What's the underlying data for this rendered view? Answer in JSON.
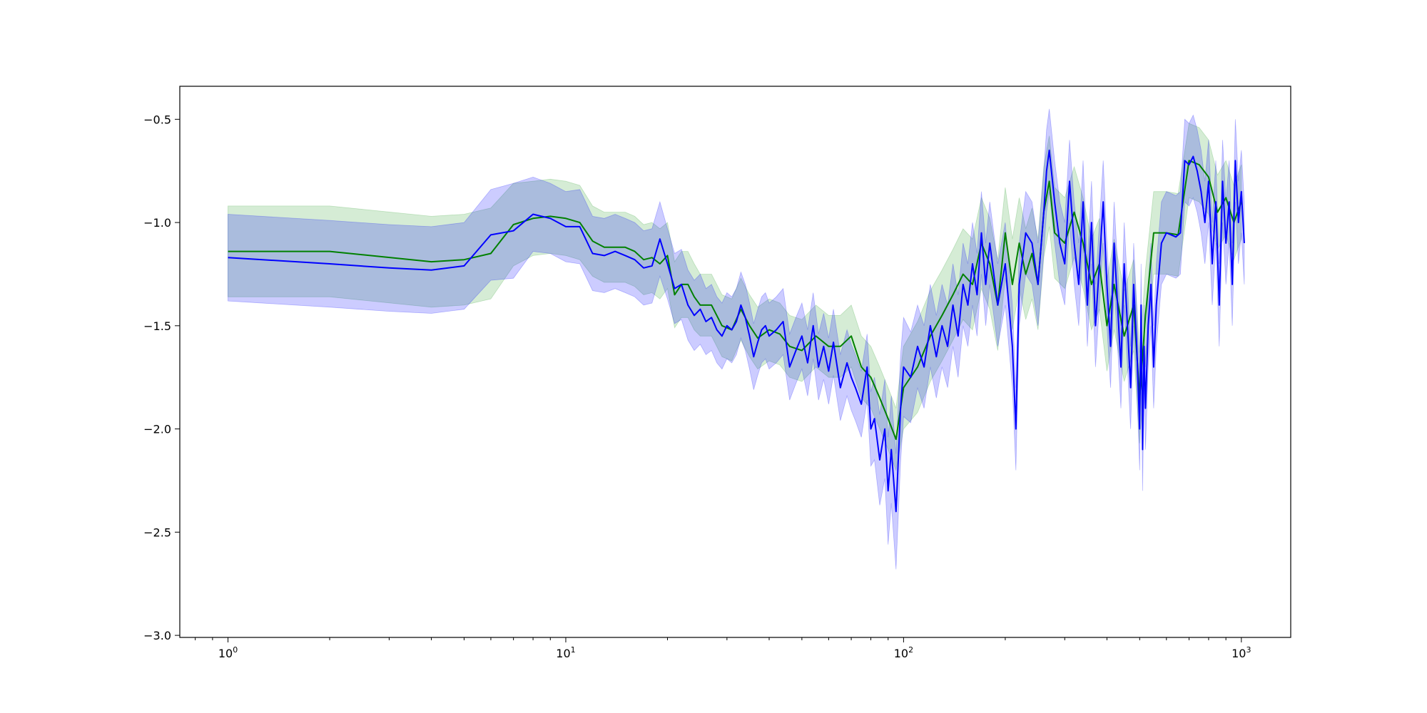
{
  "chart_data": {
    "type": "line",
    "title": "",
    "xlabel": "",
    "ylabel": "",
    "x_scale": "log",
    "xlim": [
      0.72,
      1400
    ],
    "ylim": [
      -3.01,
      -0.34
    ],
    "grid": false,
    "legend": "none",
    "x_ticks": [
      {
        "value": 1,
        "base": "10",
        "exp": "0"
      },
      {
        "value": 10,
        "base": "10",
        "exp": "1"
      },
      {
        "value": 100,
        "base": "10",
        "exp": "2"
      },
      {
        "value": 1000,
        "base": "10",
        "exp": "3"
      }
    ],
    "y_ticks": [
      {
        "value": -0.5,
        "label": "−0.5"
      },
      {
        "value": -1.0,
        "label": "−1.0"
      },
      {
        "value": -1.5,
        "label": "−1.5"
      },
      {
        "value": -2.0,
        "label": "−2.0"
      },
      {
        "value": -2.5,
        "label": "−2.5"
      },
      {
        "value": -3.0,
        "label": "−3.0"
      }
    ],
    "series": [
      {
        "color": "#008000",
        "band_color": "#2ca02c",
        "x": [
          1,
          2,
          4,
          5,
          6,
          7,
          8,
          9,
          10,
          11,
          12,
          13,
          15,
          16,
          17,
          18,
          19,
          20,
          21,
          22,
          23,
          24,
          25,
          27,
          29,
          31,
          33,
          35,
          37,
          40,
          43,
          46,
          50,
          55,
          60,
          65,
          70,
          75,
          80,
          85,
          90,
          95,
          100,
          110,
          120,
          130,
          140,
          150,
          160,
          170,
          180,
          190,
          200,
          210,
          220,
          230,
          240,
          250,
          260,
          270,
          280,
          300,
          320,
          340,
          360,
          380,
          400,
          420,
          450,
          480,
          500,
          520,
          550,
          600,
          650,
          700,
          750,
          800,
          850,
          900,
          950,
          1000
        ],
        "y": [
          -1.14,
          -1.14,
          -1.19,
          -1.18,
          -1.15,
          -1.01,
          -0.98,
          -0.97,
          -0.98,
          -1.0,
          -1.09,
          -1.12,
          -1.12,
          -1.14,
          -1.18,
          -1.17,
          -1.2,
          -1.16,
          -1.35,
          -1.3,
          -1.3,
          -1.36,
          -1.4,
          -1.4,
          -1.5,
          -1.52,
          -1.42,
          -1.5,
          -1.56,
          -1.52,
          -1.54,
          -1.6,
          -1.62,
          -1.55,
          -1.6,
          -1.6,
          -1.55,
          -1.7,
          -1.75,
          -1.85,
          -1.95,
          -2.05,
          -1.8,
          -1.7,
          -1.55,
          -1.45,
          -1.35,
          -1.25,
          -1.3,
          -1.1,
          -1.2,
          -1.4,
          -1.05,
          -1.3,
          -1.1,
          -1.25,
          -1.15,
          -1.3,
          -0.95,
          -0.8,
          -1.05,
          -1.1,
          -0.95,
          -1.1,
          -1.3,
          -1.2,
          -1.5,
          -1.3,
          -1.55,
          -1.4,
          -1.85,
          -1.45,
          -1.05,
          -1.05,
          -1.06,
          -0.7,
          -0.72,
          -0.78,
          -0.95,
          -0.88,
          -1.0,
          -0.9
        ],
        "band": [
          0.22,
          0.22,
          0.22,
          0.22,
          0.22,
          0.2,
          0.18,
          0.18,
          0.18,
          0.18,
          0.17,
          0.17,
          0.17,
          0.17,
          0.17,
          0.17,
          0.17,
          0.16,
          0.16,
          0.16,
          0.16,
          0.16,
          0.15,
          0.15,
          0.15,
          0.15,
          0.15,
          0.15,
          0.15,
          0.15,
          0.15,
          0.15,
          0.15,
          0.15,
          0.15,
          0.15,
          0.15,
          0.15,
          0.15,
          0.15,
          0.15,
          0.15,
          0.2,
          0.22,
          0.22,
          0.22,
          0.22,
          0.22,
          0.22,
          0.22,
          0.22,
          0.22,
          0.22,
          0.22,
          0.22,
          0.22,
          0.22,
          0.22,
          0.22,
          0.22,
          0.22,
          0.22,
          0.22,
          0.22,
          0.22,
          0.22,
          0.22,
          0.22,
          0.22,
          0.22,
          0.22,
          0.22,
          0.2,
          0.2,
          0.2,
          0.18,
          0.18,
          0.18,
          0.18,
          0.18,
          0.18,
          0.18
        ]
      },
      {
        "color": "#0000ff",
        "band_color": "#0000ff",
        "x": [
          1,
          2,
          3,
          4,
          5,
          6,
          7,
          8,
          9,
          10,
          11,
          12,
          13,
          14,
          15,
          16,
          17,
          18,
          19,
          20,
          21,
          22,
          23,
          24,
          25,
          26,
          27,
          28,
          29,
          30,
          31,
          32,
          33,
          34,
          35,
          36,
          37,
          38,
          39,
          40,
          42,
          44,
          46,
          48,
          50,
          52,
          54,
          56,
          58,
          60,
          62,
          65,
          68,
          70,
          72,
          75,
          78,
          80,
          82,
          85,
          88,
          90,
          92,
          95,
          98,
          100,
          105,
          110,
          115,
          120,
          125,
          130,
          135,
          140,
          145,
          150,
          155,
          160,
          165,
          170,
          175,
          180,
          190,
          200,
          210,
          215,
          220,
          230,
          240,
          250,
          260,
          265,
          270,
          280,
          290,
          300,
          310,
          320,
          330,
          340,
          350,
          360,
          370,
          380,
          390,
          400,
          410,
          420,
          430,
          440,
          450,
          460,
          470,
          480,
          490,
          500,
          505,
          510,
          515,
          520,
          530,
          540,
          550,
          560,
          580,
          600,
          620,
          640,
          660,
          680,
          700,
          720,
          740,
          760,
          780,
          800,
          820,
          840,
          860,
          880,
          900,
          920,
          940,
          960,
          980,
          1000,
          1020
        ],
        "y": [
          -1.17,
          -1.2,
          -1.22,
          -1.23,
          -1.21,
          -1.06,
          -1.04,
          -0.96,
          -0.98,
          -1.02,
          -1.02,
          -1.15,
          -1.16,
          -1.14,
          -1.16,
          -1.18,
          -1.22,
          -1.21,
          -1.08,
          -1.2,
          -1.32,
          -1.3,
          -1.4,
          -1.45,
          -1.42,
          -1.48,
          -1.46,
          -1.52,
          -1.55,
          -1.5,
          -1.52,
          -1.48,
          -1.4,
          -1.46,
          -1.55,
          -1.65,
          -1.58,
          -1.52,
          -1.5,
          -1.55,
          -1.52,
          -1.48,
          -1.7,
          -1.62,
          -1.55,
          -1.68,
          -1.5,
          -1.7,
          -1.6,
          -1.72,
          -1.58,
          -1.8,
          -1.68,
          -1.75,
          -1.8,
          -1.88,
          -1.7,
          -2.0,
          -1.95,
          -2.15,
          -2.0,
          -2.3,
          -2.1,
          -2.4,
          -1.9,
          -1.7,
          -1.75,
          -1.6,
          -1.7,
          -1.5,
          -1.65,
          -1.5,
          -1.6,
          -1.4,
          -1.55,
          -1.3,
          -1.4,
          -1.2,
          -1.35,
          -1.05,
          -1.3,
          -1.1,
          -1.4,
          -1.2,
          -1.6,
          -2.0,
          -1.3,
          -1.05,
          -1.1,
          -1.3,
          -0.95,
          -0.75,
          -0.65,
          -0.9,
          -1.1,
          -1.2,
          -0.8,
          -1.1,
          -1.3,
          -0.9,
          -1.4,
          -1.0,
          -1.5,
          -1.2,
          -0.9,
          -1.3,
          -1.6,
          -1.1,
          -1.4,
          -1.7,
          -1.2,
          -1.5,
          -1.8,
          -1.3,
          -1.6,
          -2.0,
          -1.4,
          -2.1,
          -1.6,
          -1.9,
          -1.5,
          -1.3,
          -1.7,
          -1.4,
          -1.1,
          -1.05,
          -1.06,
          -1.07,
          -1.05,
          -0.7,
          -0.72,
          -0.68,
          -0.75,
          -0.85,
          -1.0,
          -0.8,
          -1.2,
          -0.9,
          -1.4,
          -0.8,
          -1.1,
          -0.9,
          -1.3,
          -0.7,
          -1.0,
          -0.85,
          -1.1
        ],
        "band": [
          0.21,
          0.21,
          0.21,
          0.21,
          0.21,
          0.22,
          0.23,
          0.18,
          0.17,
          0.17,
          0.18,
          0.18,
          0.18,
          0.18,
          0.18,
          0.18,
          0.18,
          0.18,
          0.18,
          0.17,
          0.17,
          0.17,
          0.17,
          0.17,
          0.17,
          0.16,
          0.16,
          0.16,
          0.16,
          0.16,
          0.16,
          0.16,
          0.16,
          0.16,
          0.16,
          0.16,
          0.16,
          0.16,
          0.16,
          0.16,
          0.16,
          0.16,
          0.16,
          0.16,
          0.16,
          0.16,
          0.16,
          0.16,
          0.16,
          0.16,
          0.16,
          0.16,
          0.16,
          0.16,
          0.16,
          0.16,
          0.16,
          0.18,
          0.2,
          0.22,
          0.24,
          0.26,
          0.26,
          0.28,
          0.26,
          0.24,
          0.22,
          0.2,
          0.2,
          0.2,
          0.2,
          0.2,
          0.2,
          0.2,
          0.2,
          0.2,
          0.2,
          0.2,
          0.2,
          0.2,
          0.2,
          0.2,
          0.2,
          0.2,
          0.2,
          0.2,
          0.2,
          0.2,
          0.2,
          0.2,
          0.2,
          0.2,
          0.2,
          0.2,
          0.2,
          0.2,
          0.2,
          0.2,
          0.2,
          0.2,
          0.2,
          0.2,
          0.2,
          0.2,
          0.2,
          0.2,
          0.2,
          0.2,
          0.2,
          0.2,
          0.2,
          0.2,
          0.2,
          0.2,
          0.2,
          0.2,
          0.2,
          0.2,
          0.2,
          0.2,
          0.2,
          0.2,
          0.2,
          0.2,
          0.2,
          0.2,
          0.2,
          0.2,
          0.2,
          0.2,
          0.2,
          0.2,
          0.2,
          0.2,
          0.2,
          0.2,
          0.2,
          0.2,
          0.2,
          0.2,
          0.2,
          0.2,
          0.2,
          0.2,
          0.2,
          0.2,
          0.2
        ]
      }
    ]
  }
}
